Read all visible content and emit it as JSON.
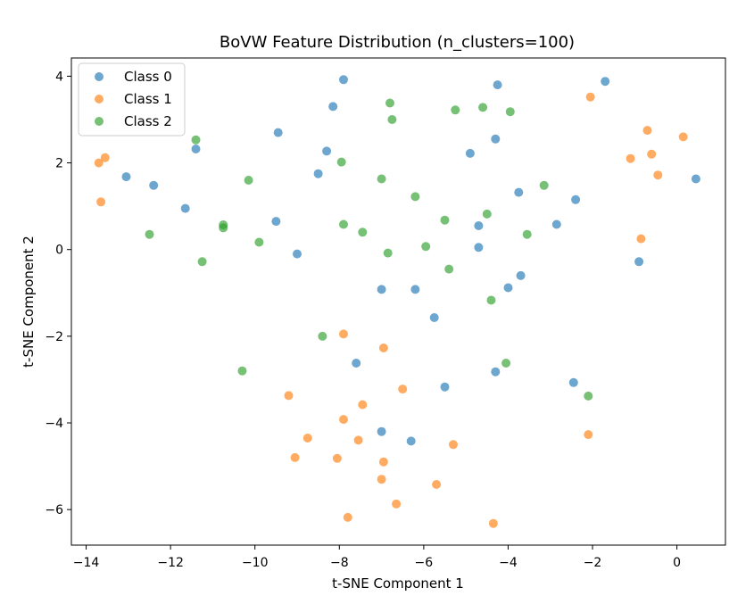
{
  "chart_data": {
    "type": "scatter",
    "title": "BoVW Feature Distribution (n_clusters=100)",
    "xlabel": "t-SNE Component 1",
    "ylabel": "t-SNE Component 2",
    "xlim": [
      -14.35,
      1.15
    ],
    "ylim": [
      -6.82,
      4.42
    ],
    "xticks": [
      -14,
      -12,
      -10,
      -8,
      -6,
      -4,
      -2,
      0
    ],
    "yticks": [
      -6,
      -4,
      -2,
      0,
      2,
      4
    ],
    "xtick_labels": [
      "−14",
      "−12",
      "−10",
      "−8",
      "−6",
      "−4",
      "−2",
      "0"
    ],
    "ytick_labels": [
      "−6",
      "−4",
      "−2",
      "0",
      "2",
      "4"
    ],
    "legend_position": "top-left",
    "grid": false,
    "series": [
      {
        "name": "Class 0",
        "color": "#1f77b4",
        "points": [
          [
            -7.9,
            3.92
          ],
          [
            -4.25,
            3.8
          ],
          [
            -1.7,
            3.88
          ],
          [
            -8.15,
            3.3
          ],
          [
            -9.45,
            2.7
          ],
          [
            -4.3,
            2.55
          ],
          [
            -11.4,
            2.32
          ],
          [
            -8.3,
            2.27
          ],
          [
            -4.9,
            2.22
          ],
          [
            -13.05,
            1.68
          ],
          [
            -12.4,
            1.48
          ],
          [
            -8.5,
            1.75
          ],
          [
            -3.75,
            1.32
          ],
          [
            -2.4,
            1.15
          ],
          [
            0.45,
            1.63
          ],
          [
            -11.65,
            0.95
          ],
          [
            -9.5,
            0.65
          ],
          [
            -4.7,
            0.55
          ],
          [
            -2.85,
            0.58
          ],
          [
            -9.0,
            -0.1
          ],
          [
            -4.7,
            0.05
          ],
          [
            -0.9,
            -0.28
          ],
          [
            -3.7,
            -0.6
          ],
          [
            -4.0,
            -0.88
          ],
          [
            -7.0,
            -0.92
          ],
          [
            -6.2,
            -0.92
          ],
          [
            -5.75,
            -1.57
          ],
          [
            -7.6,
            -2.62
          ],
          [
            -4.3,
            -2.82
          ],
          [
            -2.45,
            -3.07
          ],
          [
            -5.5,
            -3.17
          ],
          [
            -7.0,
            -4.2
          ],
          [
            -6.3,
            -4.42
          ]
        ]
      },
      {
        "name": "Class 1",
        "color": "#ff7f0e",
        "points": [
          [
            -2.05,
            3.52
          ],
          [
            -0.7,
            2.75
          ],
          [
            0.15,
            2.6
          ],
          [
            -0.6,
            2.2
          ],
          [
            -1.1,
            2.1
          ],
          [
            -0.45,
            1.72
          ],
          [
            -13.55,
            2.12
          ],
          [
            -13.7,
            2.0
          ],
          [
            -13.65,
            1.1
          ],
          [
            -0.85,
            0.25
          ],
          [
            -7.9,
            -1.95
          ],
          [
            -6.95,
            -2.27
          ],
          [
            -9.2,
            -3.37
          ],
          [
            -6.5,
            -3.22
          ],
          [
            -7.45,
            -3.58
          ],
          [
            -7.9,
            -3.92
          ],
          [
            -8.75,
            -4.35
          ],
          [
            -7.55,
            -4.4
          ],
          [
            -5.3,
            -4.5
          ],
          [
            -2.1,
            -4.27
          ],
          [
            -9.05,
            -4.8
          ],
          [
            -8.05,
            -4.82
          ],
          [
            -6.95,
            -4.9
          ],
          [
            -7.0,
            -5.3
          ],
          [
            -5.7,
            -5.42
          ],
          [
            -6.65,
            -5.87
          ],
          [
            -7.8,
            -6.18
          ],
          [
            -4.35,
            -6.32
          ]
        ]
      },
      {
        "name": "Class 2",
        "color": "#2ca02c",
        "points": [
          [
            -6.8,
            3.38
          ],
          [
            -4.6,
            3.28
          ],
          [
            -5.25,
            3.22
          ],
          [
            -3.95,
            3.18
          ],
          [
            -6.75,
            3.0
          ],
          [
            -11.4,
            2.53
          ],
          [
            -7.95,
            2.02
          ],
          [
            -10.15,
            1.6
          ],
          [
            -7.0,
            1.63
          ],
          [
            -3.15,
            1.48
          ],
          [
            -6.2,
            1.22
          ],
          [
            -4.5,
            0.82
          ],
          [
            -5.5,
            0.68
          ],
          [
            -10.75,
            0.57
          ],
          [
            -10.75,
            0.5
          ],
          [
            -7.9,
            0.58
          ],
          [
            -7.45,
            0.4
          ],
          [
            -12.5,
            0.35
          ],
          [
            -3.55,
            0.35
          ],
          [
            -9.9,
            0.17
          ],
          [
            -5.95,
            0.07
          ],
          [
            -6.85,
            -0.08
          ],
          [
            -11.25,
            -0.28
          ],
          [
            -5.4,
            -0.45
          ],
          [
            -4.4,
            -1.17
          ],
          [
            -8.4,
            -2.0
          ],
          [
            -4.05,
            -2.62
          ],
          [
            -10.3,
            -2.8
          ],
          [
            -2.1,
            -3.38
          ]
        ]
      }
    ]
  }
}
